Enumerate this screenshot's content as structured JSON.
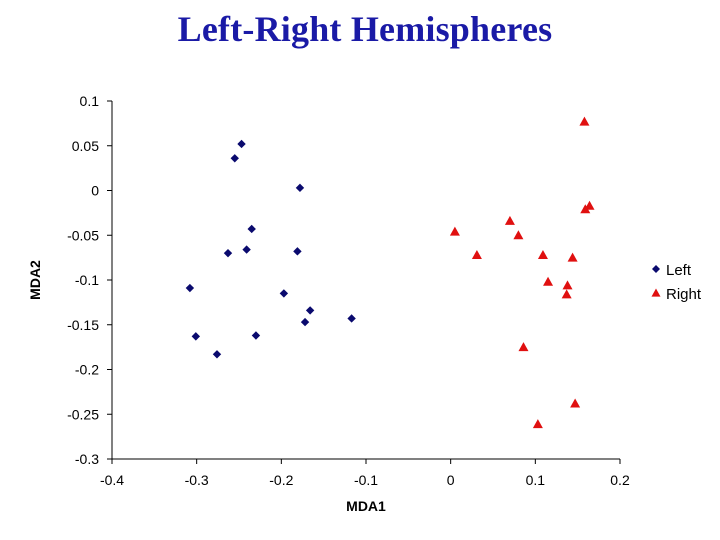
{
  "title": "Left-Right Hemispheres",
  "colors": {
    "left": "#0a0a6e",
    "right": "#e01010",
    "title": "#1a1aa6"
  },
  "chart_data": {
    "type": "scatter",
    "xlabel": "MDA1",
    "ylabel": "MDA2",
    "xlim": [
      -0.4,
      0.2
    ],
    "ylim": [
      -0.3,
      0.1
    ],
    "xticks": [
      "-0.4",
      "-0.3",
      "-0.2",
      "-0.1",
      "0",
      "0.1",
      "0.2"
    ],
    "yticks": [
      "0.1",
      "0.05",
      "0",
      "-0.05",
      "-0.1",
      "-0.15",
      "-0.2",
      "-0.25",
      "-0.3"
    ],
    "grid": false,
    "legend_position": "right",
    "series": [
      {
        "name": "Left",
        "marker": "diamond",
        "points": [
          [
            -0.247,
            0.052
          ],
          [
            -0.255,
            0.036
          ],
          [
            -0.178,
            0.003
          ],
          [
            -0.235,
            -0.043
          ],
          [
            -0.263,
            -0.07
          ],
          [
            -0.241,
            -0.066
          ],
          [
            -0.181,
            -0.068
          ],
          [
            -0.308,
            -0.109
          ],
          [
            -0.197,
            -0.115
          ],
          [
            -0.166,
            -0.134
          ],
          [
            -0.172,
            -0.147
          ],
          [
            -0.117,
            -0.143
          ],
          [
            -0.301,
            -0.163
          ],
          [
            -0.23,
            -0.162
          ],
          [
            -0.276,
            -0.183
          ]
        ]
      },
      {
        "name": "Right",
        "marker": "triangle",
        "points": [
          [
            0.158,
            0.077
          ],
          [
            0.164,
            -0.017
          ],
          [
            0.159,
            -0.021
          ],
          [
            0.005,
            -0.046
          ],
          [
            0.07,
            -0.034
          ],
          [
            0.08,
            -0.05
          ],
          [
            0.031,
            -0.072
          ],
          [
            0.109,
            -0.072
          ],
          [
            0.144,
            -0.075
          ],
          [
            0.115,
            -0.102
          ],
          [
            0.138,
            -0.106
          ],
          [
            0.137,
            -0.116
          ],
          [
            0.086,
            -0.175
          ],
          [
            0.147,
            -0.238
          ],
          [
            0.103,
            -0.261
          ]
        ]
      }
    ]
  }
}
